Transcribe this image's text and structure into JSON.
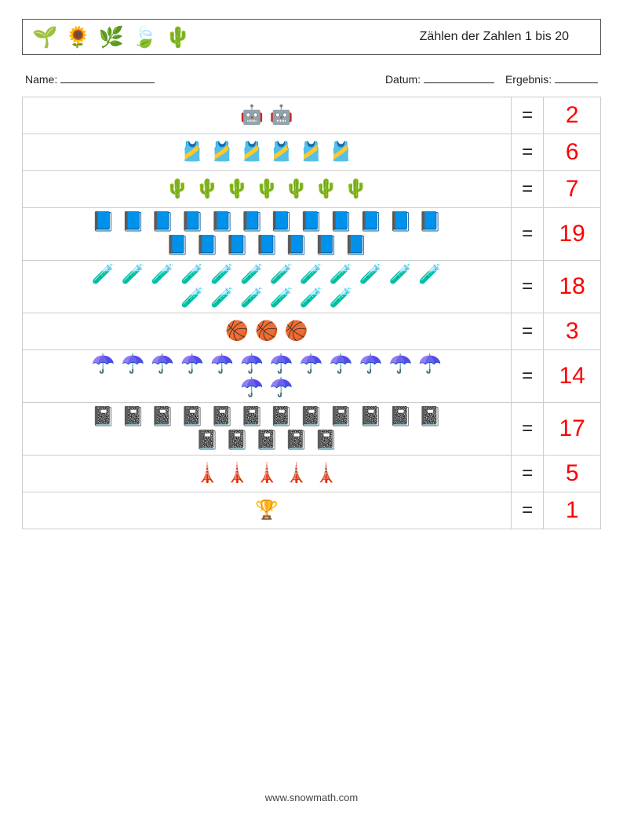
{
  "header": {
    "title": "Zählen der Zahlen 1 bis 20",
    "icons": [
      "🌱",
      "🌻",
      "🌿",
      "🍃",
      "🌵"
    ]
  },
  "meta": {
    "name_label": "Name:",
    "date_label": "Datum:",
    "result_label": "Ergebnis:"
  },
  "equals_sign": "=",
  "answer_color": "#ff0000",
  "icon_color": "#2b6fb3",
  "border_color": "#cccccc",
  "rows": [
    {
      "icon": "🤖",
      "count": 2,
      "answer": "2"
    },
    {
      "icon": "🎽",
      "count": 6,
      "answer": "6"
    },
    {
      "icon": "🌵",
      "count": 7,
      "answer": "7"
    },
    {
      "icon": "📘",
      "count": 19,
      "answer": "19"
    },
    {
      "icon": "🧪",
      "count": 18,
      "answer": "18"
    },
    {
      "icon": "🏀",
      "count": 3,
      "answer": "3"
    },
    {
      "icon": "☂️",
      "count": 14,
      "answer": "14"
    },
    {
      "icon": "📓",
      "count": 17,
      "answer": "17"
    },
    {
      "icon": "🗼",
      "count": 5,
      "answer": "5"
    },
    {
      "icon": "🏆",
      "count": 1,
      "answer": "1"
    }
  ],
  "footer": {
    "url": "www.snowmath.com"
  }
}
